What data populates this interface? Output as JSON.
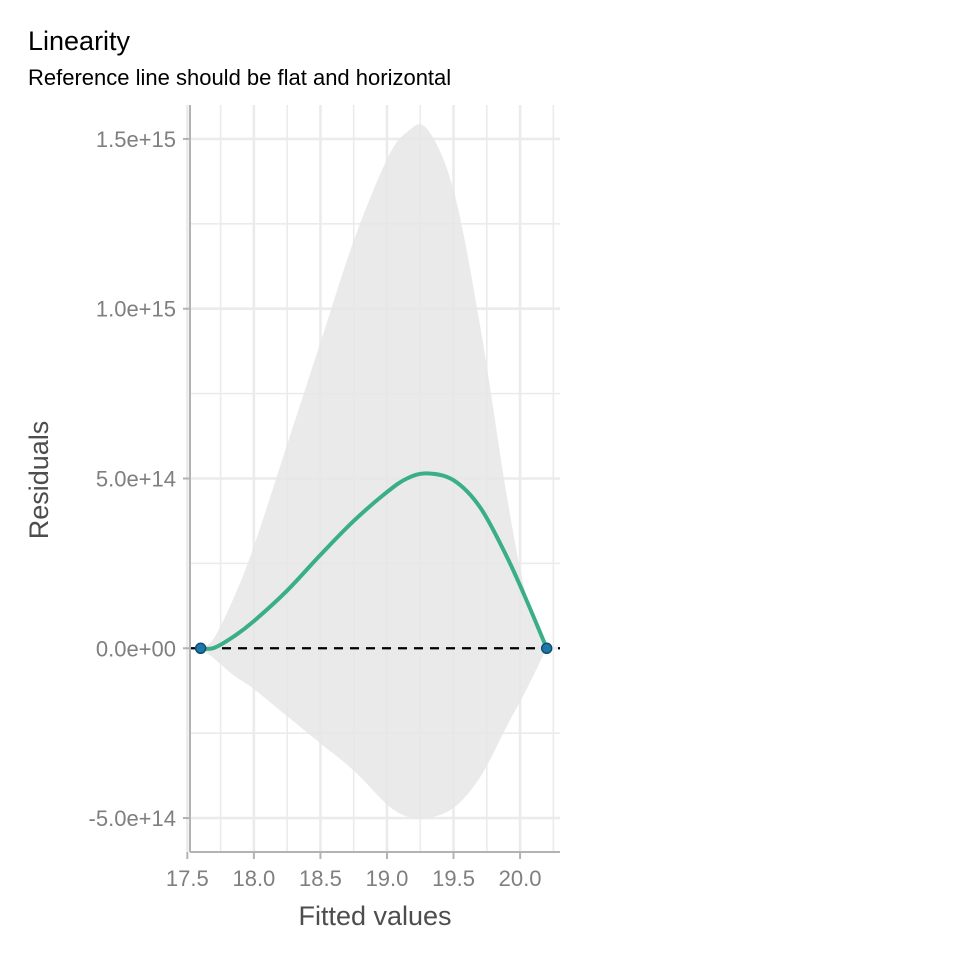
{
  "chart_data": {
    "type": "line",
    "title": "Linearity",
    "subtitle": "Reference line should be flat and horizontal",
    "xlabel": "Fitted values",
    "ylabel": "Residuals",
    "xlim": [
      17.52,
      20.3
    ],
    "ylim": [
      -600000000000000.0,
      1600000000000000.0
    ],
    "x_ticks": [
      17.5,
      18.0,
      18.5,
      19.0,
      19.5,
      20.0
    ],
    "x_tick_labels": [
      "17.5",
      "18.0",
      "18.5",
      "19.0",
      "19.5",
      "20.0"
    ],
    "y_ticks": [
      -500000000000000.0,
      0,
      500000000000000.0,
      1000000000000000.0,
      1500000000000000.0
    ],
    "y_tick_labels": [
      "-5.0e+14",
      "0.0e+00",
      "5.0e+14",
      "1.0e+15",
      "1.5e+15"
    ],
    "grid": true,
    "reference_line": {
      "y": 0,
      "style": "dashed",
      "color": "#000000"
    },
    "points": [
      {
        "x": 17.6,
        "y": 0
      },
      {
        "x": 20.2,
        "y": 0
      }
    ],
    "smooth": {
      "color": "#3aaf85",
      "x": [
        17.6,
        17.7,
        17.85,
        18.0,
        18.25,
        18.5,
        18.75,
        19.0,
        19.15,
        19.3,
        19.5,
        19.7,
        19.9,
        20.05,
        20.2
      ],
      "y": [
        0,
        1000000000000.0,
        35000000000000.0,
        80000000000000.0,
        170000000000000.0,
        275000000000000.0,
        375000000000000.0,
        460000000000000.0,
        500000000000000.0,
        515000000000000.0,
        495000000000000.0,
        415000000000000.0,
        270000000000000.0,
        140000000000000.0,
        0
      ]
    },
    "confidence_band": {
      "color": "#e6e6e6",
      "x": [
        17.6,
        17.7,
        17.85,
        18.0,
        18.25,
        18.5,
        18.75,
        19.0,
        19.15,
        19.3,
        19.5,
        19.7,
        19.9,
        20.05,
        20.2
      ],
      "upper": [
        0,
        30000000000000.0,
        150000000000000.0,
        300000000000000.0,
        600000000000000.0,
        900000000000000.0,
        1200000000000000.0,
        1440000000000000.0,
        1520000000000000.0,
        1530000000000000.0,
        1350000000000000.0,
        950000000000000.0,
        450000000000000.0,
        150000000000000.0,
        0
      ],
      "lower": [
        0,
        -30000000000000.0,
        -80000000000000.0,
        -120000000000000.0,
        -200000000000000.0,
        -280000000000000.0,
        -360000000000000.0,
        -460000000000000.0,
        -495000000000000.0,
        -500000000000000.0,
        -470000000000000.0,
        -380000000000000.0,
        -230000000000000.0,
        -120000000000000.0,
        0
      ]
    },
    "colors": {
      "points": "#1f77a8",
      "grid": "#ebebeb",
      "axis": "#b3b3b3"
    }
  }
}
